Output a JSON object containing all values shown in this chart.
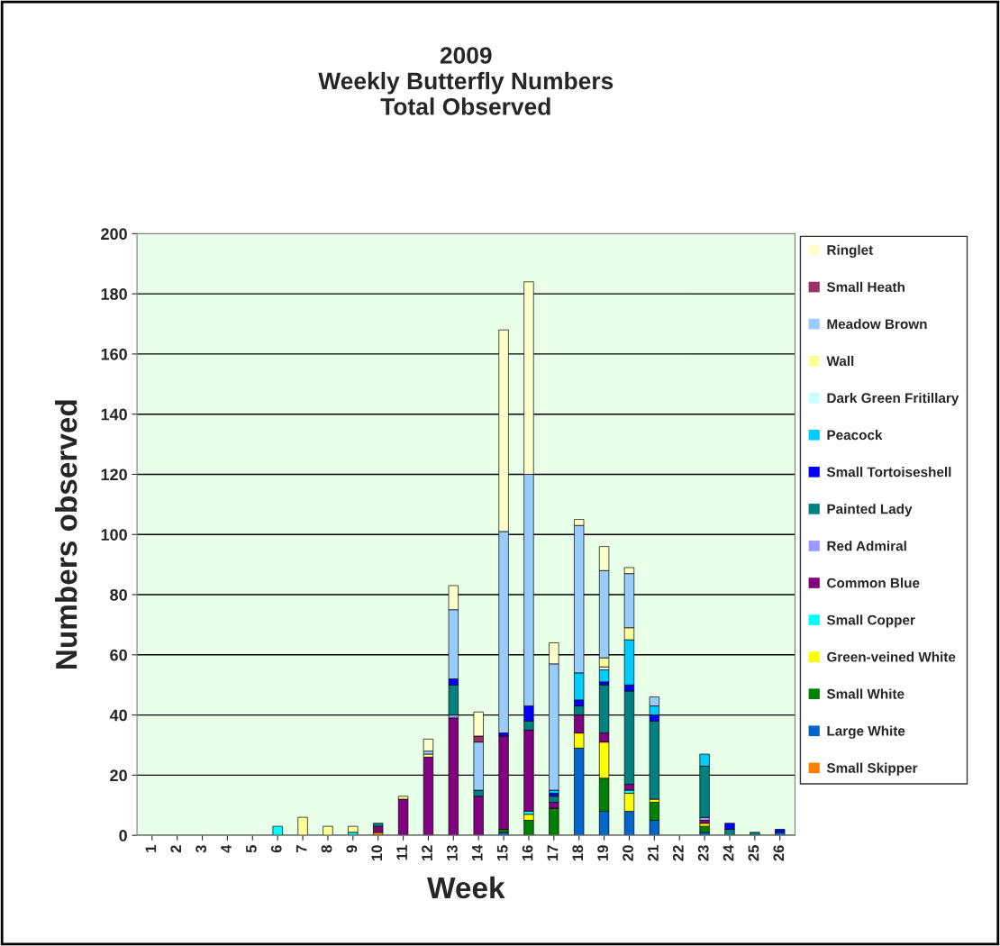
{
  "chart_data": {
    "type": "bar",
    "stacked": true,
    "title": "2009\nWeekly Butterfly Numbers\nTotal Observed",
    "xlabel": "Week",
    "ylabel": "Numbers observed",
    "categories": [
      "1",
      "2",
      "3",
      "4",
      "5",
      "6",
      "7",
      "8",
      "9",
      "10",
      "11",
      "12",
      "13",
      "14",
      "15",
      "16",
      "17",
      "18",
      "19",
      "20",
      "21",
      "22",
      "23",
      "24",
      "25",
      "26"
    ],
    "ylim": [
      0,
      200
    ],
    "yticks": [
      0,
      20,
      40,
      60,
      80,
      100,
      120,
      140,
      160,
      180,
      200
    ],
    "grid": "y",
    "legend": "right",
    "series": [
      {
        "name": "Small Skipper",
        "color": "#ff8000",
        "values": [
          0,
          0,
          0,
          0,
          0,
          0,
          0,
          0,
          0,
          1,
          0,
          0,
          0,
          0,
          0,
          0,
          0,
          0,
          0,
          0,
          0,
          0,
          0,
          0,
          0,
          0
        ]
      },
      {
        "name": "Large White",
        "color": "#0066cc",
        "values": [
          0,
          0,
          0,
          0,
          0,
          0,
          0,
          0,
          0,
          0,
          0,
          0,
          0,
          0,
          1,
          0,
          0,
          29,
          8,
          8,
          5,
          0,
          1,
          0,
          0,
          1
        ]
      },
      {
        "name": "Small White",
        "color": "#008000",
        "values": [
          0,
          0,
          0,
          0,
          0,
          0,
          0,
          0,
          0,
          0,
          0,
          0,
          0,
          0,
          1,
          5,
          9,
          0,
          11,
          0,
          6,
          0,
          2,
          0,
          0,
          0
        ]
      },
      {
        "name": "Green-veined White",
        "color": "#ffff00",
        "values": [
          0,
          0,
          0,
          0,
          0,
          0,
          0,
          0,
          0,
          0,
          0,
          0,
          0,
          0,
          0,
          2,
          0,
          5,
          12,
          6,
          1,
          0,
          1,
          0,
          0,
          0
        ]
      },
      {
        "name": "Small Copper",
        "color": "#00ffff",
        "values": [
          0,
          0,
          0,
          0,
          0,
          3,
          0,
          0,
          1,
          0,
          0,
          0,
          0,
          0,
          0,
          1,
          0,
          0,
          0,
          1,
          0,
          0,
          0,
          0,
          0,
          0
        ]
      },
      {
        "name": "Common Blue",
        "color": "#800080",
        "values": [
          0,
          0,
          0,
          0,
          0,
          0,
          0,
          0,
          0,
          2,
          12,
          26,
          39,
          13,
          31,
          27,
          2,
          6,
          3,
          2,
          0,
          0,
          1,
          0,
          0,
          0
        ]
      },
      {
        "name": "Red Admiral",
        "color": "#9999ff",
        "values": [
          0,
          0,
          0,
          0,
          0,
          0,
          0,
          0,
          0,
          0,
          0,
          0,
          1,
          0,
          0,
          0,
          0,
          0,
          0,
          0,
          0,
          0,
          1,
          0,
          0,
          0
        ]
      },
      {
        "name": "Painted Lady",
        "color": "#008080",
        "values": [
          0,
          0,
          0,
          0,
          0,
          0,
          0,
          0,
          0,
          1,
          0,
          0,
          10,
          2,
          0,
          3,
          2,
          3,
          16,
          31,
          26,
          0,
          17,
          2,
          1,
          0
        ]
      },
      {
        "name": "Small Tortoiseshell",
        "color": "#0000ff",
        "values": [
          0,
          0,
          0,
          0,
          0,
          0,
          0,
          0,
          0,
          0,
          0,
          0,
          2,
          0,
          1,
          5,
          1,
          2,
          1,
          2,
          2,
          0,
          0,
          2,
          0,
          1
        ]
      },
      {
        "name": "Peacock",
        "color": "#00ccff",
        "values": [
          0,
          0,
          0,
          0,
          0,
          0,
          0,
          0,
          0,
          0,
          0,
          0,
          0,
          0,
          0,
          0,
          1,
          9,
          4,
          15,
          3,
          0,
          4,
          0,
          0,
          0
        ]
      },
      {
        "name": "Dark Green Fritillary",
        "color": "#ccffff",
        "values": [
          0,
          0,
          0,
          0,
          0,
          0,
          0,
          0,
          0,
          0,
          0,
          0,
          0,
          0,
          0,
          0,
          0,
          0,
          1,
          0,
          0,
          0,
          0,
          0,
          0,
          0
        ]
      },
      {
        "name": "Wall",
        "color": "#ffff99",
        "values": [
          0,
          0,
          0,
          0,
          0,
          0,
          6,
          3,
          2,
          0,
          1,
          1,
          0,
          0,
          0,
          0,
          0,
          0,
          3,
          4,
          0,
          0,
          0,
          0,
          0,
          0
        ]
      },
      {
        "name": "Meadow Brown",
        "color": "#99ccff",
        "values": [
          0,
          0,
          0,
          0,
          0,
          0,
          0,
          0,
          0,
          0,
          0,
          1,
          23,
          16,
          67,
          77,
          42,
          49,
          29,
          18,
          3,
          0,
          0,
          0,
          0,
          0
        ]
      },
      {
        "name": "Small Heath",
        "color": "#993366",
        "values": [
          0,
          0,
          0,
          0,
          0,
          0,
          0,
          0,
          0,
          0,
          0,
          0,
          0,
          2,
          0,
          0,
          0,
          0,
          0,
          0,
          0,
          0,
          0,
          0,
          0,
          0
        ]
      },
      {
        "name": "Ringlet",
        "color": "#ffffcc",
        "values": [
          0,
          0,
          0,
          0,
          0,
          0,
          0,
          0,
          0,
          0,
          0,
          4,
          8,
          8,
          67,
          64,
          7,
          2,
          8,
          2,
          0,
          0,
          0,
          0,
          0,
          0
        ]
      }
    ]
  }
}
